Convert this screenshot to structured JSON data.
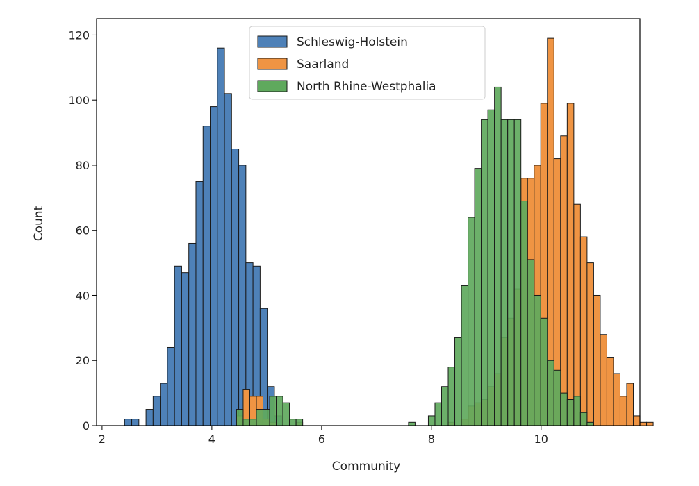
{
  "chart_data": {
    "type": "histogram",
    "xlabel": "Community",
    "ylabel": "Count",
    "xlim": [
      1.9,
      11.8
    ],
    "ylim": [
      0,
      125
    ],
    "xticks": [
      2,
      4,
      6,
      8,
      10
    ],
    "yticks": [
      0,
      20,
      40,
      60,
      80,
      100,
      120
    ],
    "legend_position": "upper-center",
    "grid": false,
    "series": [
      {
        "name": "Schleswig-Holstein",
        "color": "#4e81b8",
        "bin_width": 0.13,
        "bin_start": 2.41,
        "counts": [
          2,
          2,
          0,
          5,
          9,
          13,
          24,
          49,
          47,
          56,
          75,
          92,
          98,
          116,
          102,
          85,
          80,
          50,
          49,
          36,
          12,
          3
        ]
      },
      {
        "name": "Saarland",
        "color": "#ef9443",
        "bin_width": 0.1205,
        "bin_start": 4.45,
        "counts": [
          3,
          11,
          9,
          9,
          2,
          1,
          0,
          0,
          0,
          1,
          0,
          0,
          0,
          0,
          0,
          0,
          0,
          0,
          0,
          0,
          0,
          0,
          0,
          0,
          0,
          0,
          0,
          0,
          0,
          0,
          0,
          0,
          1,
          0,
          2,
          6,
          7,
          8,
          12,
          16,
          27,
          33,
          42,
          76,
          76,
          80,
          99,
          119,
          82,
          89,
          99,
          68,
          58,
          50,
          40,
          28,
          21,
          16,
          9,
          13,
          3,
          1,
          1
        ]
      },
      {
        "name": "North Rhine-Westphalia",
        "color": "#5fa95d",
        "bin_width": 0.1205,
        "bin_start": 4.45,
        "counts": [
          5,
          2,
          2,
          5,
          5,
          9,
          9,
          7,
          2,
          2,
          0,
          0,
          0,
          0,
          0,
          0,
          0,
          0,
          0,
          0,
          0,
          0,
          0,
          0,
          0,
          0,
          1,
          0,
          0,
          3,
          7,
          12,
          18,
          27,
          43,
          64,
          79,
          94,
          97,
          104,
          94,
          94,
          94,
          69,
          51,
          40,
          33,
          20,
          17,
          10,
          8,
          9,
          4,
          1,
          0
        ]
      }
    ],
    "overlay": {
      "note": "",
      "color": "#3f8f4b"
    }
  },
  "legend": {
    "items": [
      {
        "label": "Schleswig-Holstein",
        "color": "#4e81b8"
      },
      {
        "label": "Saarland",
        "color": "#ef9443"
      },
      {
        "label": "North Rhine-Westphalia",
        "color": "#5fa95d"
      }
    ]
  },
  "axes": {
    "x_label": "Community",
    "y_label": "Count"
  }
}
